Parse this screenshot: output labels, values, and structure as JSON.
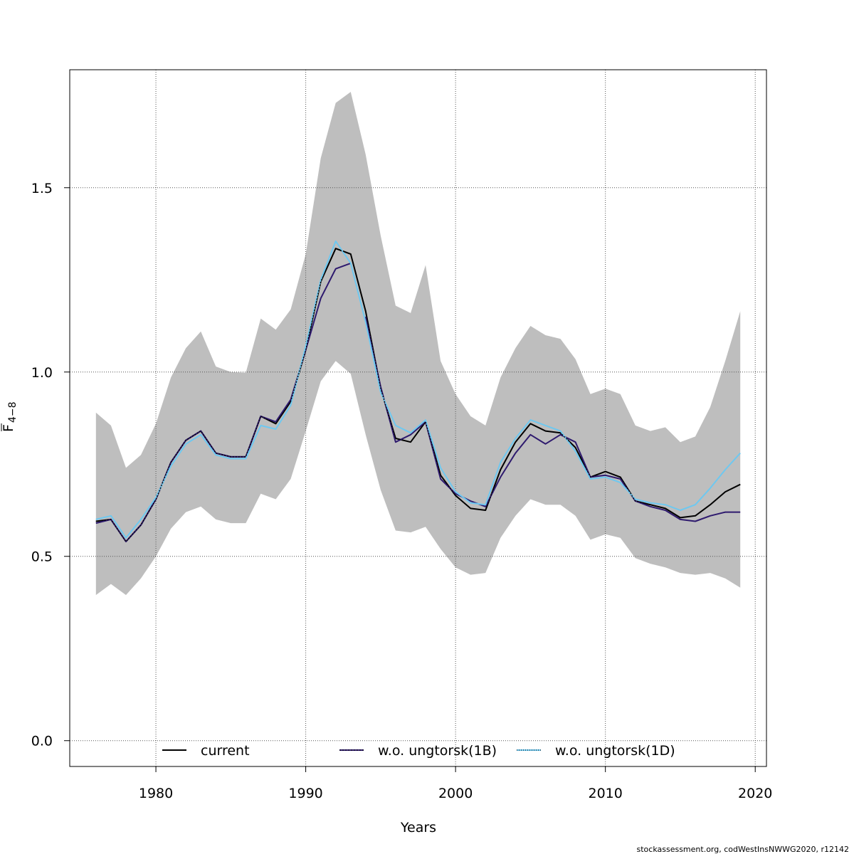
{
  "chart_data": {
    "type": "line",
    "title": "",
    "xlabel": "Years",
    "ylabel_main": "F",
    "ylabel_sub": "4−8",
    "xlim": [
      1974.25,
      2020.75
    ],
    "ylim": [
      -0.07,
      1.82
    ],
    "x_ticks": [
      1980,
      1990,
      2000,
      2010,
      2020
    ],
    "x_tick_labels": [
      "1980",
      "1990",
      "2000",
      "2010",
      "2020"
    ],
    "y_ticks": [
      0.0,
      0.5,
      1.0,
      1.5
    ],
    "y_tick_labels": [
      "0.0",
      "0.5",
      "1.0",
      "1.5"
    ],
    "grid": true,
    "legend_position": "bottom",
    "colors": {
      "band": "#bebebe",
      "current": "#000000",
      "series_1b": "#2e1a6e",
      "series_1d": "#6ec8f0",
      "grid": "#555555"
    },
    "x": [
      1976,
      1977,
      1978,
      1979,
      1980,
      1981,
      1982,
      1983,
      1984,
      1985,
      1986,
      1987,
      1988,
      1989,
      1990,
      1991,
      1992,
      1993,
      1994,
      1995,
      1996,
      1997,
      1998,
      1999,
      2000,
      2001,
      2002,
      2003,
      2004,
      2005,
      2006,
      2007,
      2008,
      2009,
      2010,
      2011,
      2012,
      2013,
      2014,
      2015,
      2016,
      2017,
      2018,
      2019
    ],
    "band": {
      "name": "current 95% CI",
      "upper": [
        0.89,
        0.855,
        0.74,
        0.775,
        0.86,
        0.985,
        1.065,
        1.11,
        1.015,
        1.0,
        0.998,
        1.145,
        1.115,
        1.17,
        1.32,
        1.58,
        1.73,
        1.76,
        1.59,
        1.37,
        1.18,
        1.16,
        1.29,
        1.03,
        0.94,
        0.88,
        0.855,
        0.985,
        1.065,
        1.125,
        1.1,
        1.09,
        1.035,
        0.94,
        0.955,
        0.94,
        0.855,
        0.84,
        0.85,
        0.81,
        0.825,
        0.905,
        1.03,
        1.165
      ],
      "lower": [
        0.395,
        0.425,
        0.395,
        0.44,
        0.5,
        0.575,
        0.62,
        0.635,
        0.6,
        0.59,
        0.59,
        0.67,
        0.655,
        0.71,
        0.84,
        0.975,
        1.03,
        0.995,
        0.83,
        0.68,
        0.57,
        0.565,
        0.58,
        0.52,
        0.47,
        0.45,
        0.455,
        0.55,
        0.61,
        0.655,
        0.64,
        0.64,
        0.61,
        0.545,
        0.56,
        0.55,
        0.495,
        0.48,
        0.47,
        0.455,
        0.45,
        0.455,
        0.44,
        0.415
      ]
    },
    "series": [
      {
        "name": "current",
        "legend": "current",
        "values": [
          0.595,
          0.6,
          0.54,
          0.585,
          0.655,
          0.755,
          0.815,
          0.84,
          0.78,
          0.77,
          0.77,
          0.88,
          0.86,
          0.92,
          1.06,
          1.245,
          1.335,
          1.32,
          1.165,
          0.955,
          0.82,
          0.81,
          0.865,
          0.72,
          0.665,
          0.63,
          0.625,
          0.735,
          0.81,
          0.86,
          0.84,
          0.835,
          0.795,
          0.715,
          0.73,
          0.715,
          0.65,
          0.64,
          0.63,
          0.605,
          0.61,
          0.64,
          0.675,
          0.695
        ]
      },
      {
        "name": "w.o. ungtorsk(1B)",
        "legend": "w.o. ungtorsk(1B)",
        "values": [
          0.59,
          0.6,
          0.54,
          0.585,
          0.655,
          0.755,
          0.815,
          0.84,
          0.78,
          0.77,
          0.77,
          0.88,
          0.865,
          0.925,
          1.06,
          1.2,
          1.28,
          1.295,
          null,
          null,
          null,
          null,
          null,
          null,
          null,
          null,
          null,
          null,
          null,
          null,
          null,
          null,
          null,
          null,
          null,
          null,
          null,
          null,
          null,
          null,
          null,
          null,
          null,
          null
        ]
      },
      {
        "name": "w.o. ungtorsk(1B) late",
        "legend": "",
        "values": [
          null,
          null,
          null,
          null,
          null,
          null,
          null,
          null,
          null,
          null,
          null,
          null,
          null,
          null,
          null,
          null,
          null,
          null,
          1.15,
          0.96,
          0.81,
          0.83,
          0.865,
          0.71,
          0.67,
          0.65,
          0.635,
          0.715,
          0.78,
          0.83,
          0.805,
          0.83,
          0.81,
          0.715,
          0.72,
          0.71,
          0.65,
          0.635,
          0.625,
          0.6,
          0.595,
          0.61,
          0.62,
          0.62
        ]
      },
      {
        "name": "w.o. ungtorsk(1D)",
        "legend": "w.o. ungtorsk(1D)",
        "values": [
          0.6,
          0.61,
          0.55,
          0.6,
          0.66,
          0.745,
          0.805,
          0.83,
          0.775,
          0.765,
          0.765,
          0.855,
          0.845,
          0.91,
          1.07,
          1.25,
          1.355,
          1.295,
          1.135,
          0.945,
          0.855,
          0.835,
          0.87,
          0.74,
          0.675,
          0.645,
          0.64,
          0.755,
          0.82,
          0.87,
          0.855,
          0.84,
          0.785,
          0.71,
          0.715,
          0.7,
          0.655,
          0.645,
          0.64,
          0.625,
          0.64,
          0.685,
          0.735,
          0.78
        ]
      }
    ],
    "footer": "stockassessment.org, codWestInsNWWG2020, r12142"
  }
}
